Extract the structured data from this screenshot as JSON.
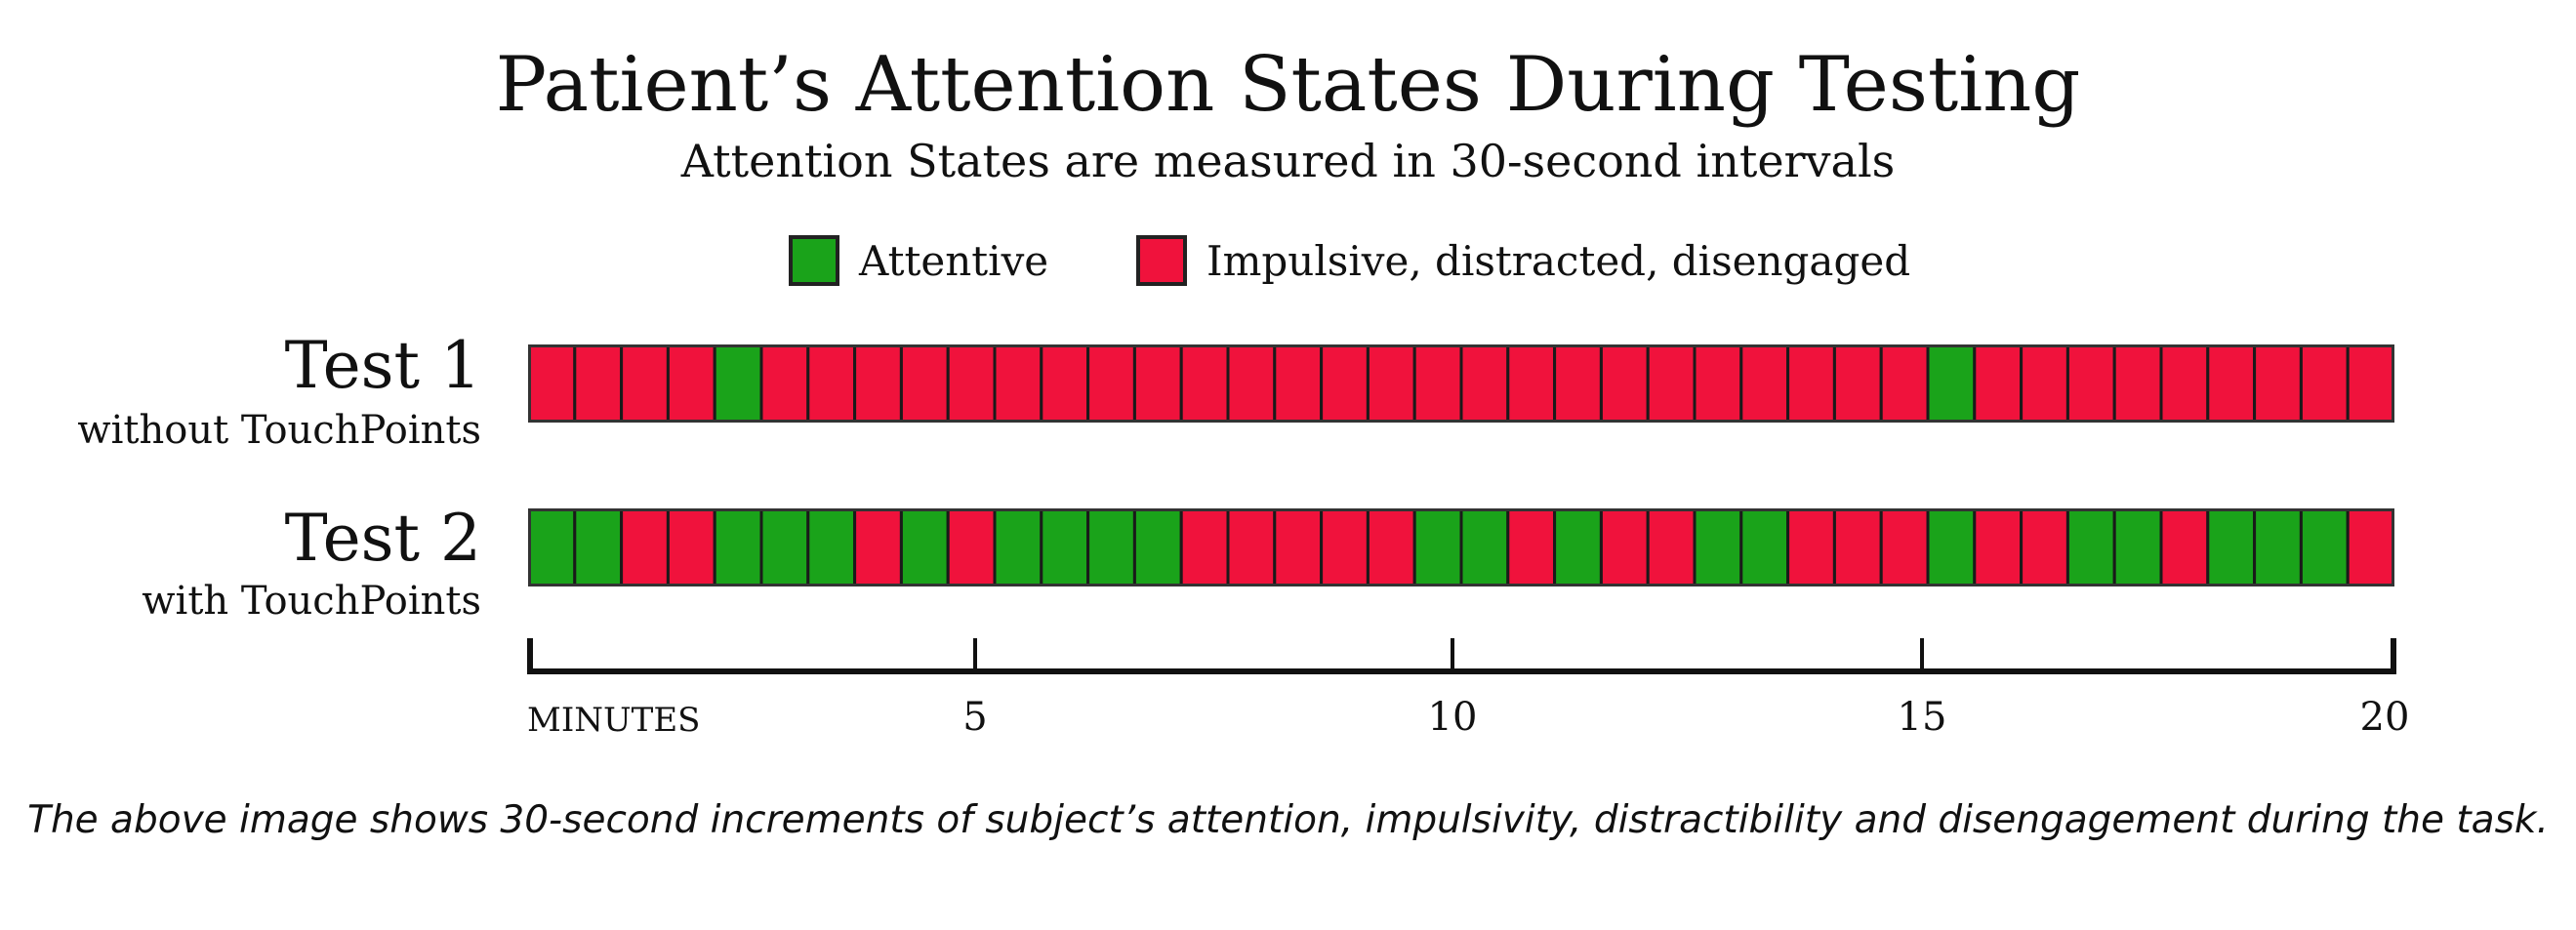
{
  "title": "Patient’s Attention States During Testing",
  "subtitle": "Attention States are measured in 30-second intervals",
  "legend": [
    {
      "label": "Attentive",
      "color": "#1aa31a"
    },
    {
      "label": "Impulsive, distracted, disengaged",
      "color": "#f0123c"
    }
  ],
  "caption": "The above image shows 30-second increments of subject’s attention, impulsivity, distractibility and disengagement during the task.",
  "chart_data": {
    "type": "heatmap",
    "title": "Patient’s Attention States During Testing",
    "subtitle": "Attention States are measured in 30-second intervals",
    "xlabel": "MINUTES",
    "x_ticks": [
      5,
      10,
      15,
      20
    ],
    "xlim": [
      0,
      20
    ],
    "interval_seconds": 30,
    "states": {
      "A": "Attentive",
      "I": "Impulsive, distracted, disengaged"
    },
    "series": [
      {
        "name": "Test 1",
        "sublabel": "without TouchPoints",
        "values": [
          "I",
          "I",
          "I",
          "I",
          "A",
          "I",
          "I",
          "I",
          "I",
          "I",
          "I",
          "I",
          "I",
          "I",
          "I",
          "I",
          "I",
          "I",
          "I",
          "I",
          "I",
          "I",
          "I",
          "I",
          "I",
          "I",
          "I",
          "I",
          "I",
          "I",
          "A",
          "I",
          "I",
          "I",
          "I",
          "I",
          "I",
          "I",
          "I",
          "I"
        ]
      },
      {
        "name": "Test 2",
        "sublabel": "with TouchPoints",
        "values": [
          "A",
          "A",
          "I",
          "I",
          "A",
          "A",
          "A",
          "I",
          "A",
          "I",
          "A",
          "A",
          "A",
          "A",
          "I",
          "I",
          "I",
          "I",
          "I",
          "A",
          "A",
          "I",
          "A",
          "I",
          "I",
          "A",
          "A",
          "I",
          "I",
          "I",
          "A",
          "I",
          "I",
          "A",
          "A",
          "I",
          "A",
          "A",
          "A",
          "I"
        ]
      }
    ],
    "colors": {
      "A": "#1aa31a",
      "I": "#f0123c"
    }
  }
}
